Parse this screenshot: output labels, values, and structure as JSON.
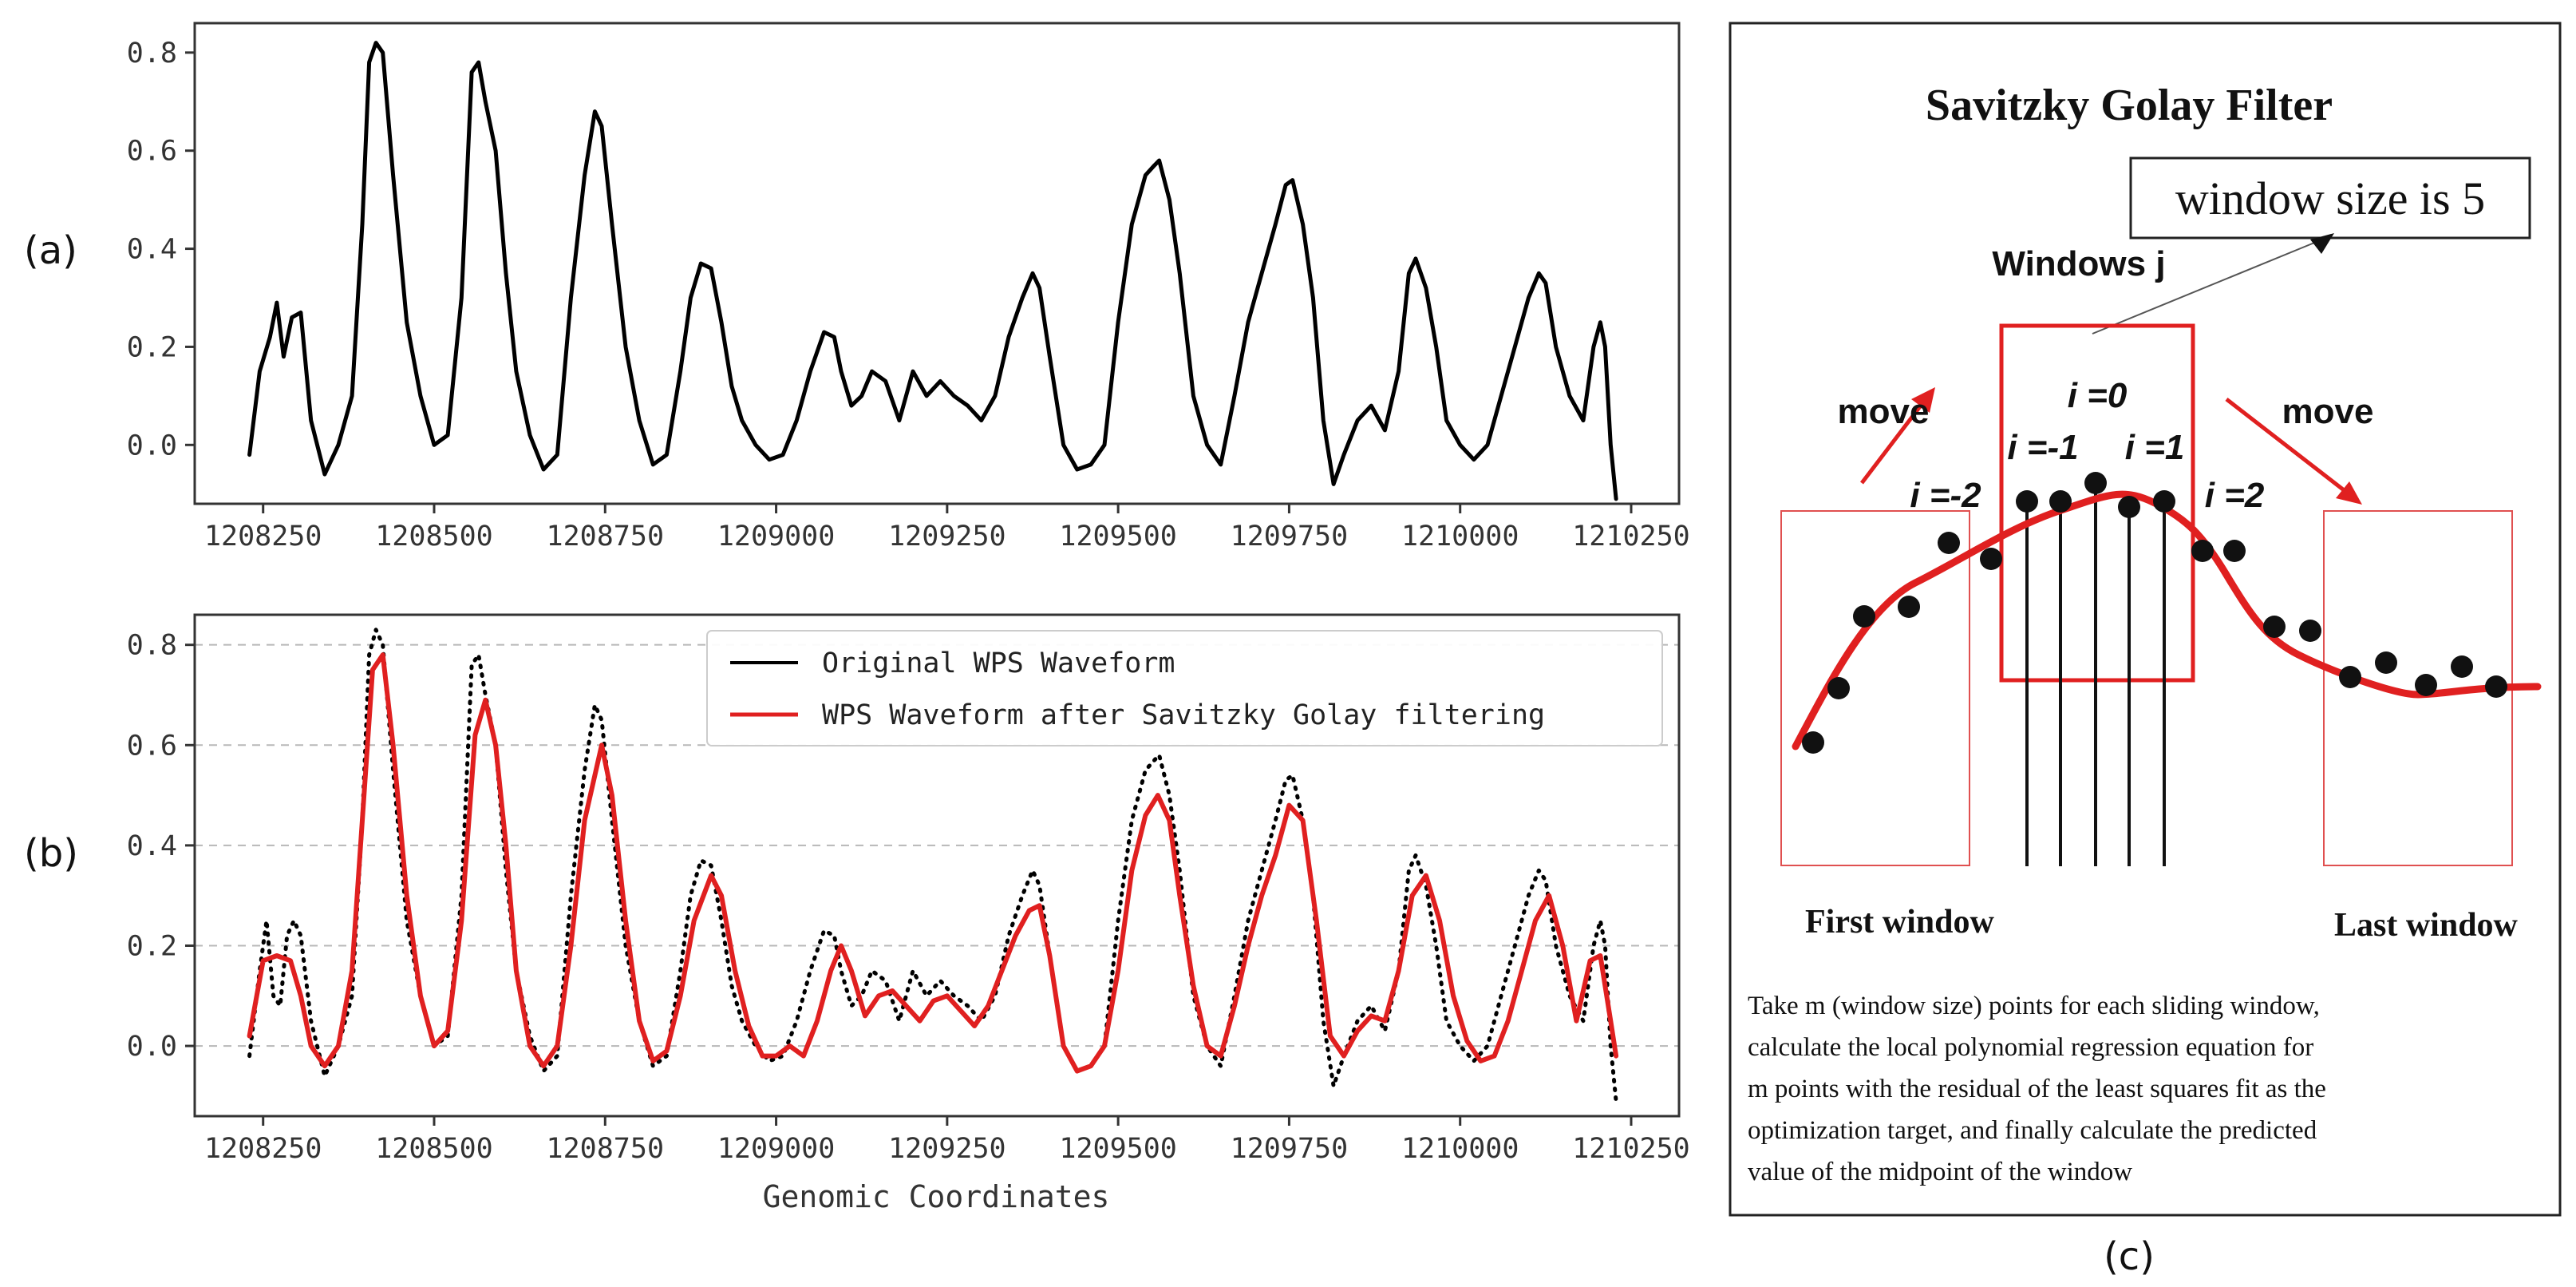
{
  "chart_data": [
    {
      "id": "a",
      "type": "line",
      "panel_label": "(a)",
      "title": "",
      "xlabel": "",
      "ylabel": "",
      "xlim": [
        1208150,
        1210320
      ],
      "ylim": [
        -0.12,
        0.86
      ],
      "grid": false,
      "xticks": [
        1208250,
        1208500,
        1208750,
        1209000,
        1209250,
        1209500,
        1209750,
        1210000,
        1210250
      ],
      "xtick_labels": [
        "1208250",
        "1208500",
        "1208750",
        "1209000",
        "1209250",
        "1209500",
        "1209750",
        "1210000",
        "1210250"
      ],
      "yticks": [
        0.0,
        0.2,
        0.4,
        0.6,
        0.8
      ],
      "ytick_labels": [
        "0.0",
        "0.2",
        "0.4",
        "0.6",
        "0.8"
      ],
      "series": [
        {
          "name": "WPS Waveform",
          "color": "#000000",
          "x": [
            1208230,
            1208245,
            1208260,
            1208270,
            1208280,
            1208292,
            1208305,
            1208320,
            1208340,
            1208360,
            1208380,
            1208395,
            1208405,
            1208415,
            1208425,
            1208440,
            1208460,
            1208480,
            1208500,
            1208520,
            1208540,
            1208555,
            1208565,
            1208575,
            1208590,
            1208605,
            1208620,
            1208640,
            1208660,
            1208680,
            1208700,
            1208720,
            1208735,
            1208745,
            1208760,
            1208780,
            1208800,
            1208820,
            1208840,
            1208860,
            1208875,
            1208890,
            1208905,
            1208920,
            1208935,
            1208950,
            1208970,
            1208990,
            1209010,
            1209030,
            1209050,
            1209070,
            1209085,
            1209095,
            1209110,
            1209125,
            1209140,
            1209160,
            1209180,
            1209200,
            1209220,
            1209240,
            1209260,
            1209280,
            1209300,
            1209320,
            1209340,
            1209360,
            1209375,
            1209385,
            1209400,
            1209420,
            1209440,
            1209460,
            1209480,
            1209500,
            1209520,
            1209540,
            1209553,
            1209560,
            1209575,
            1209590,
            1209610,
            1209630,
            1209650,
            1209670,
            1209690,
            1209710,
            1209730,
            1209745,
            1209755,
            1209770,
            1209785,
            1209800,
            1209815,
            1209830,
            1209850,
            1209870,
            1209890,
            1209910,
            1209925,
            1209935,
            1209950,
            1209965,
            1209980,
            1210000,
            1210020,
            1210040,
            1210060,
            1210080,
            1210100,
            1210115,
            1210125,
            1210140,
            1210160,
            1210180,
            1210195,
            1210205,
            1210212,
            1210220,
            1210228
          ],
          "values": [
            -0.02,
            0.15,
            0.22,
            0.29,
            0.18,
            0.26,
            0.27,
            0.05,
            -0.06,
            0.0,
            0.1,
            0.45,
            0.78,
            0.82,
            0.8,
            0.55,
            0.25,
            0.1,
            0.0,
            0.02,
            0.3,
            0.76,
            0.78,
            0.7,
            0.6,
            0.35,
            0.15,
            0.02,
            -0.05,
            -0.02,
            0.3,
            0.55,
            0.68,
            0.65,
            0.45,
            0.2,
            0.05,
            -0.04,
            -0.02,
            0.15,
            0.3,
            0.37,
            0.36,
            0.25,
            0.12,
            0.05,
            0.0,
            -0.03,
            -0.02,
            0.05,
            0.15,
            0.23,
            0.22,
            0.15,
            0.08,
            0.1,
            0.15,
            0.13,
            0.05,
            0.15,
            0.1,
            0.13,
            0.1,
            0.08,
            0.05,
            0.1,
            0.22,
            0.3,
            0.35,
            0.32,
            0.18,
            0.0,
            -0.05,
            -0.04,
            0.0,
            0.25,
            0.45,
            0.55,
            0.57,
            0.58,
            0.5,
            0.35,
            0.1,
            0.0,
            -0.04,
            0.1,
            0.25,
            0.35,
            0.45,
            0.53,
            0.54,
            0.45,
            0.3,
            0.05,
            -0.08,
            -0.02,
            0.05,
            0.08,
            0.03,
            0.15,
            0.35,
            0.38,
            0.32,
            0.2,
            0.05,
            0.0,
            -0.03,
            0.0,
            0.1,
            0.2,
            0.3,
            0.35,
            0.33,
            0.2,
            0.1,
            0.05,
            0.2,
            0.25,
            0.2,
            0.0,
            -0.11
          ]
        }
      ]
    },
    {
      "id": "b",
      "type": "line",
      "panel_label": "(b)",
      "title": "",
      "xlabel": "Genomic Coordinates",
      "ylabel": "",
      "xlim": [
        1208150,
        1210320
      ],
      "ylim": [
        -0.14,
        0.86
      ],
      "grid": true,
      "legend_position": "top-right",
      "xticks": [
        1208250,
        1208500,
        1208750,
        1209000,
        1209250,
        1209500,
        1209750,
        1210000,
        1210250
      ],
      "xtick_labels": [
        "1208250",
        "1208500",
        "1208750",
        "1209000",
        "1209250",
        "1209500",
        "1209750",
        "1210000",
        "1210250"
      ],
      "yticks": [
        0.0,
        0.2,
        0.4,
        0.6,
        0.8
      ],
      "ytick_labels": [
        "0.0",
        "0.2",
        "0.4",
        "0.6",
        "0.8"
      ],
      "series": [
        {
          "name": "Original WPS Waveform",
          "color": "#000000",
          "style": "dotted",
          "x": [
            1208230,
            1208245,
            1208255,
            1208265,
            1208275,
            1208285,
            1208295,
            1208305,
            1208320,
            1208340,
            1208360,
            1208380,
            1208395,
            1208405,
            1208415,
            1208425,
            1208440,
            1208460,
            1208480,
            1208500,
            1208520,
            1208540,
            1208555,
            1208565,
            1208575,
            1208590,
            1208605,
            1208620,
            1208640,
            1208660,
            1208680,
            1208700,
            1208720,
            1208735,
            1208745,
            1208760,
            1208780,
            1208800,
            1208820,
            1208840,
            1208860,
            1208875,
            1208890,
            1208905,
            1208920,
            1208935,
            1208950,
            1208970,
            1208990,
            1209010,
            1209030,
            1209050,
            1209070,
            1209085,
            1209095,
            1209110,
            1209125,
            1209140,
            1209160,
            1209180,
            1209200,
            1209220,
            1209240,
            1209260,
            1209280,
            1209300,
            1209320,
            1209340,
            1209360,
            1209375,
            1209385,
            1209400,
            1209420,
            1209440,
            1209460,
            1209480,
            1209500,
            1209520,
            1209540,
            1209553,
            1209560,
            1209575,
            1209590,
            1209610,
            1209630,
            1209650,
            1209670,
            1209690,
            1209710,
            1209730,
            1209745,
            1209755,
            1209770,
            1209785,
            1209800,
            1209815,
            1209830,
            1209850,
            1209870,
            1209890,
            1209910,
            1209925,
            1209935,
            1209950,
            1209965,
            1209980,
            1210000,
            1210020,
            1210040,
            1210060,
            1210080,
            1210100,
            1210115,
            1210125,
            1210140,
            1210160,
            1210180,
            1210195,
            1210205,
            1210212,
            1210220,
            1210228
          ],
          "values": [
            -0.02,
            0.15,
            0.25,
            0.1,
            0.08,
            0.22,
            0.25,
            0.22,
            0.05,
            -0.06,
            0.0,
            0.1,
            0.45,
            0.78,
            0.83,
            0.8,
            0.55,
            0.25,
            0.1,
            0.0,
            0.02,
            0.3,
            0.76,
            0.78,
            0.7,
            0.6,
            0.35,
            0.15,
            0.02,
            -0.05,
            -0.02,
            0.3,
            0.55,
            0.68,
            0.65,
            0.45,
            0.2,
            0.05,
            -0.04,
            -0.02,
            0.15,
            0.3,
            0.37,
            0.36,
            0.25,
            0.12,
            0.05,
            0.0,
            -0.03,
            -0.02,
            0.05,
            0.15,
            0.23,
            0.22,
            0.15,
            0.08,
            0.1,
            0.15,
            0.13,
            0.05,
            0.15,
            0.1,
            0.13,
            0.1,
            0.08,
            0.05,
            0.1,
            0.22,
            0.3,
            0.35,
            0.32,
            0.18,
            0.0,
            -0.05,
            -0.04,
            0.0,
            0.25,
            0.45,
            0.55,
            0.57,
            0.58,
            0.5,
            0.35,
            0.1,
            0.0,
            -0.04,
            0.1,
            0.25,
            0.35,
            0.45,
            0.53,
            0.54,
            0.45,
            0.3,
            0.05,
            -0.08,
            -0.02,
            0.05,
            0.08,
            0.03,
            0.15,
            0.35,
            0.38,
            0.32,
            0.2,
            0.05,
            0.0,
            -0.03,
            0.0,
            0.1,
            0.2,
            0.3,
            0.35,
            0.33,
            0.2,
            0.1,
            0.05,
            0.2,
            0.25,
            0.2,
            0.0,
            -0.11
          ]
        },
        {
          "name": "WPS Waveform after Savitzky Golay filtering",
          "color": "#e02020",
          "style": "solid",
          "x": [
            1208230,
            1208250,
            1208270,
            1208290,
            1208305,
            1208320,
            1208340,
            1208360,
            1208380,
            1208395,
            1208410,
            1208425,
            1208440,
            1208460,
            1208480,
            1208500,
            1208520,
            1208540,
            1208560,
            1208575,
            1208590,
            1208605,
            1208620,
            1208640,
            1208660,
            1208680,
            1208700,
            1208720,
            1208745,
            1208760,
            1208780,
            1208800,
            1208820,
            1208840,
            1208860,
            1208880,
            1208905,
            1208920,
            1208940,
            1208960,
            1208980,
            1209000,
            1209020,
            1209040,
            1209060,
            1209080,
            1209095,
            1209110,
            1209130,
            1209150,
            1209170,
            1209190,
            1209210,
            1209230,
            1209250,
            1209270,
            1209290,
            1209310,
            1209330,
            1209350,
            1209370,
            1209385,
            1209400,
            1209420,
            1209440,
            1209460,
            1209480,
            1209500,
            1209520,
            1209540,
            1209558,
            1209575,
            1209590,
            1209610,
            1209630,
            1209650,
            1209670,
            1209690,
            1209710,
            1209730,
            1209750,
            1209770,
            1209790,
            1209810,
            1209830,
            1209850,
            1209870,
            1209890,
            1209910,
            1209930,
            1209950,
            1209970,
            1209990,
            1210010,
            1210030,
            1210050,
            1210070,
            1210090,
            1210110,
            1210130,
            1210150,
            1210170,
            1210190,
            1210205,
            1210220,
            1210228
          ],
          "values": [
            0.02,
            0.17,
            0.18,
            0.17,
            0.1,
            0.0,
            -0.04,
            0.0,
            0.15,
            0.45,
            0.75,
            0.78,
            0.6,
            0.3,
            0.1,
            0.0,
            0.03,
            0.25,
            0.62,
            0.69,
            0.6,
            0.4,
            0.15,
            0.0,
            -0.04,
            0.0,
            0.2,
            0.45,
            0.6,
            0.5,
            0.25,
            0.05,
            -0.03,
            -0.01,
            0.1,
            0.25,
            0.34,
            0.3,
            0.15,
            0.04,
            -0.02,
            -0.02,
            0.0,
            -0.02,
            0.05,
            0.15,
            0.2,
            0.15,
            0.06,
            0.1,
            0.11,
            0.08,
            0.05,
            0.09,
            0.1,
            0.07,
            0.04,
            0.08,
            0.15,
            0.22,
            0.27,
            0.28,
            0.18,
            0.0,
            -0.05,
            -0.04,
            0.0,
            0.15,
            0.35,
            0.46,
            0.5,
            0.45,
            0.3,
            0.12,
            0.0,
            -0.02,
            0.08,
            0.2,
            0.3,
            0.38,
            0.48,
            0.45,
            0.25,
            0.02,
            -0.02,
            0.03,
            0.06,
            0.05,
            0.15,
            0.3,
            0.34,
            0.25,
            0.1,
            0.01,
            -0.03,
            -0.02,
            0.05,
            0.15,
            0.25,
            0.3,
            0.2,
            0.05,
            0.17,
            0.18,
            0.05,
            -0.02
          ]
        }
      ]
    },
    {
      "id": "c",
      "type": "diagram",
      "panel_label": "(c)",
      "title": "Savitzky Golay Filter",
      "callout": "window size is 5",
      "window_label": "Windows j",
      "move_left": "move",
      "move_right": "move",
      "indices": [
        "i =-2",
        "i =-1",
        "i =0",
        "i =1",
        "i =2"
      ],
      "first_window_label": "First window",
      "last_window_label": "Last window",
      "description": [
        "Take m (window size) points for each sliding window,",
        "calculate the local polynomial regression equation for",
        "m points with the residual of the least squares fit as the",
        "optimization target, and finally calculate the predicted",
        "value of the midpoint of the window"
      ],
      "accent_color": "#e02020",
      "light_box_color": "#e05050"
    }
  ]
}
